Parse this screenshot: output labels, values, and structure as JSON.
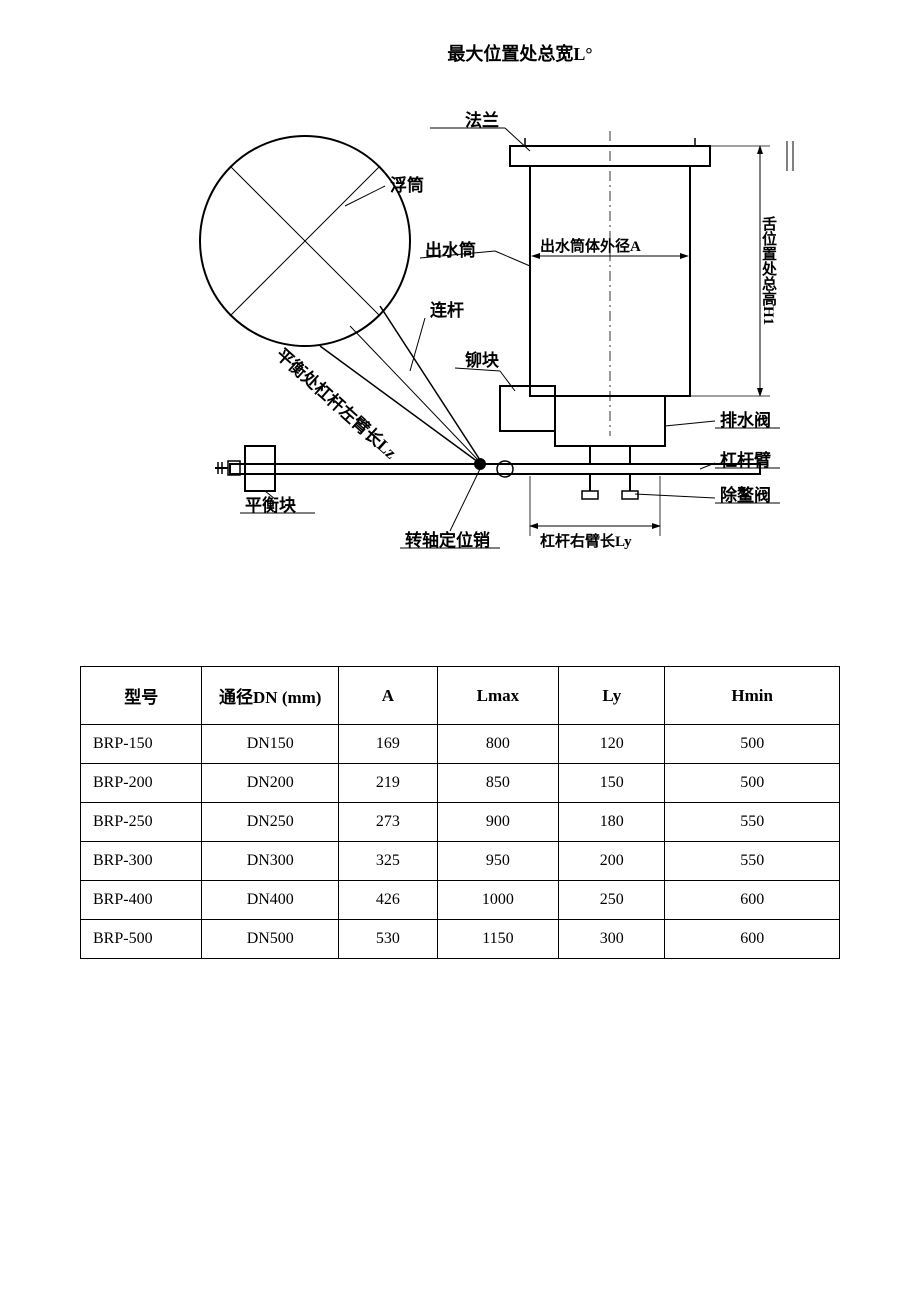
{
  "title": "最大位置处总宽L°",
  "diagram": {
    "labels": {
      "flange": "法兰",
      "float_drum": "浮筒",
      "outlet_drum": "出水筒",
      "outlet_diameter": "出水筒体外径A",
      "link_rod": "连杆",
      "latch_block": "铆块",
      "left_arm_length": "平衡处杠杆左臂长Lz",
      "balance_block": "平衡块",
      "pivot_pin": "转轴定位销",
      "right_arm_length": "杠杆右臂长Ly",
      "drain_valve": "排水阀",
      "lever_arm": "杠杆臂",
      "regulate_valve": "除鳌阀",
      "total_height": "舌位置处总高H1"
    },
    "colors": {
      "stroke": "#000000",
      "fill_none": "none",
      "fill_black": "#000000"
    },
    "line_width_thin": 1,
    "line_width_med": 1.5,
    "line_width_thick": 2
  },
  "table": {
    "columns": [
      "型号",
      "通径DN (mm)",
      "A",
      "Lmax",
      "Ly",
      "Hmin"
    ],
    "col_widths": [
      "16%",
      "18%",
      "13%",
      "16%",
      "14%",
      "23%"
    ],
    "rows": [
      [
        "BRP-150",
        "DN150",
        "169",
        "800",
        "120",
        "500"
      ],
      [
        "BRP-200",
        "DN200",
        "219",
        "850",
        "150",
        "500"
      ],
      [
        "BRP-250",
        "DN250",
        "273",
        "900",
        "180",
        "550"
      ],
      [
        "BRP-300",
        "DN300",
        "325",
        "950",
        "200",
        "550"
      ],
      [
        "BRP-400",
        "DN400",
        "426",
        "1000",
        "250",
        "600"
      ],
      [
        "BRP-500",
        "DN500",
        "530",
        "1150",
        "300",
        "600"
      ]
    ]
  }
}
